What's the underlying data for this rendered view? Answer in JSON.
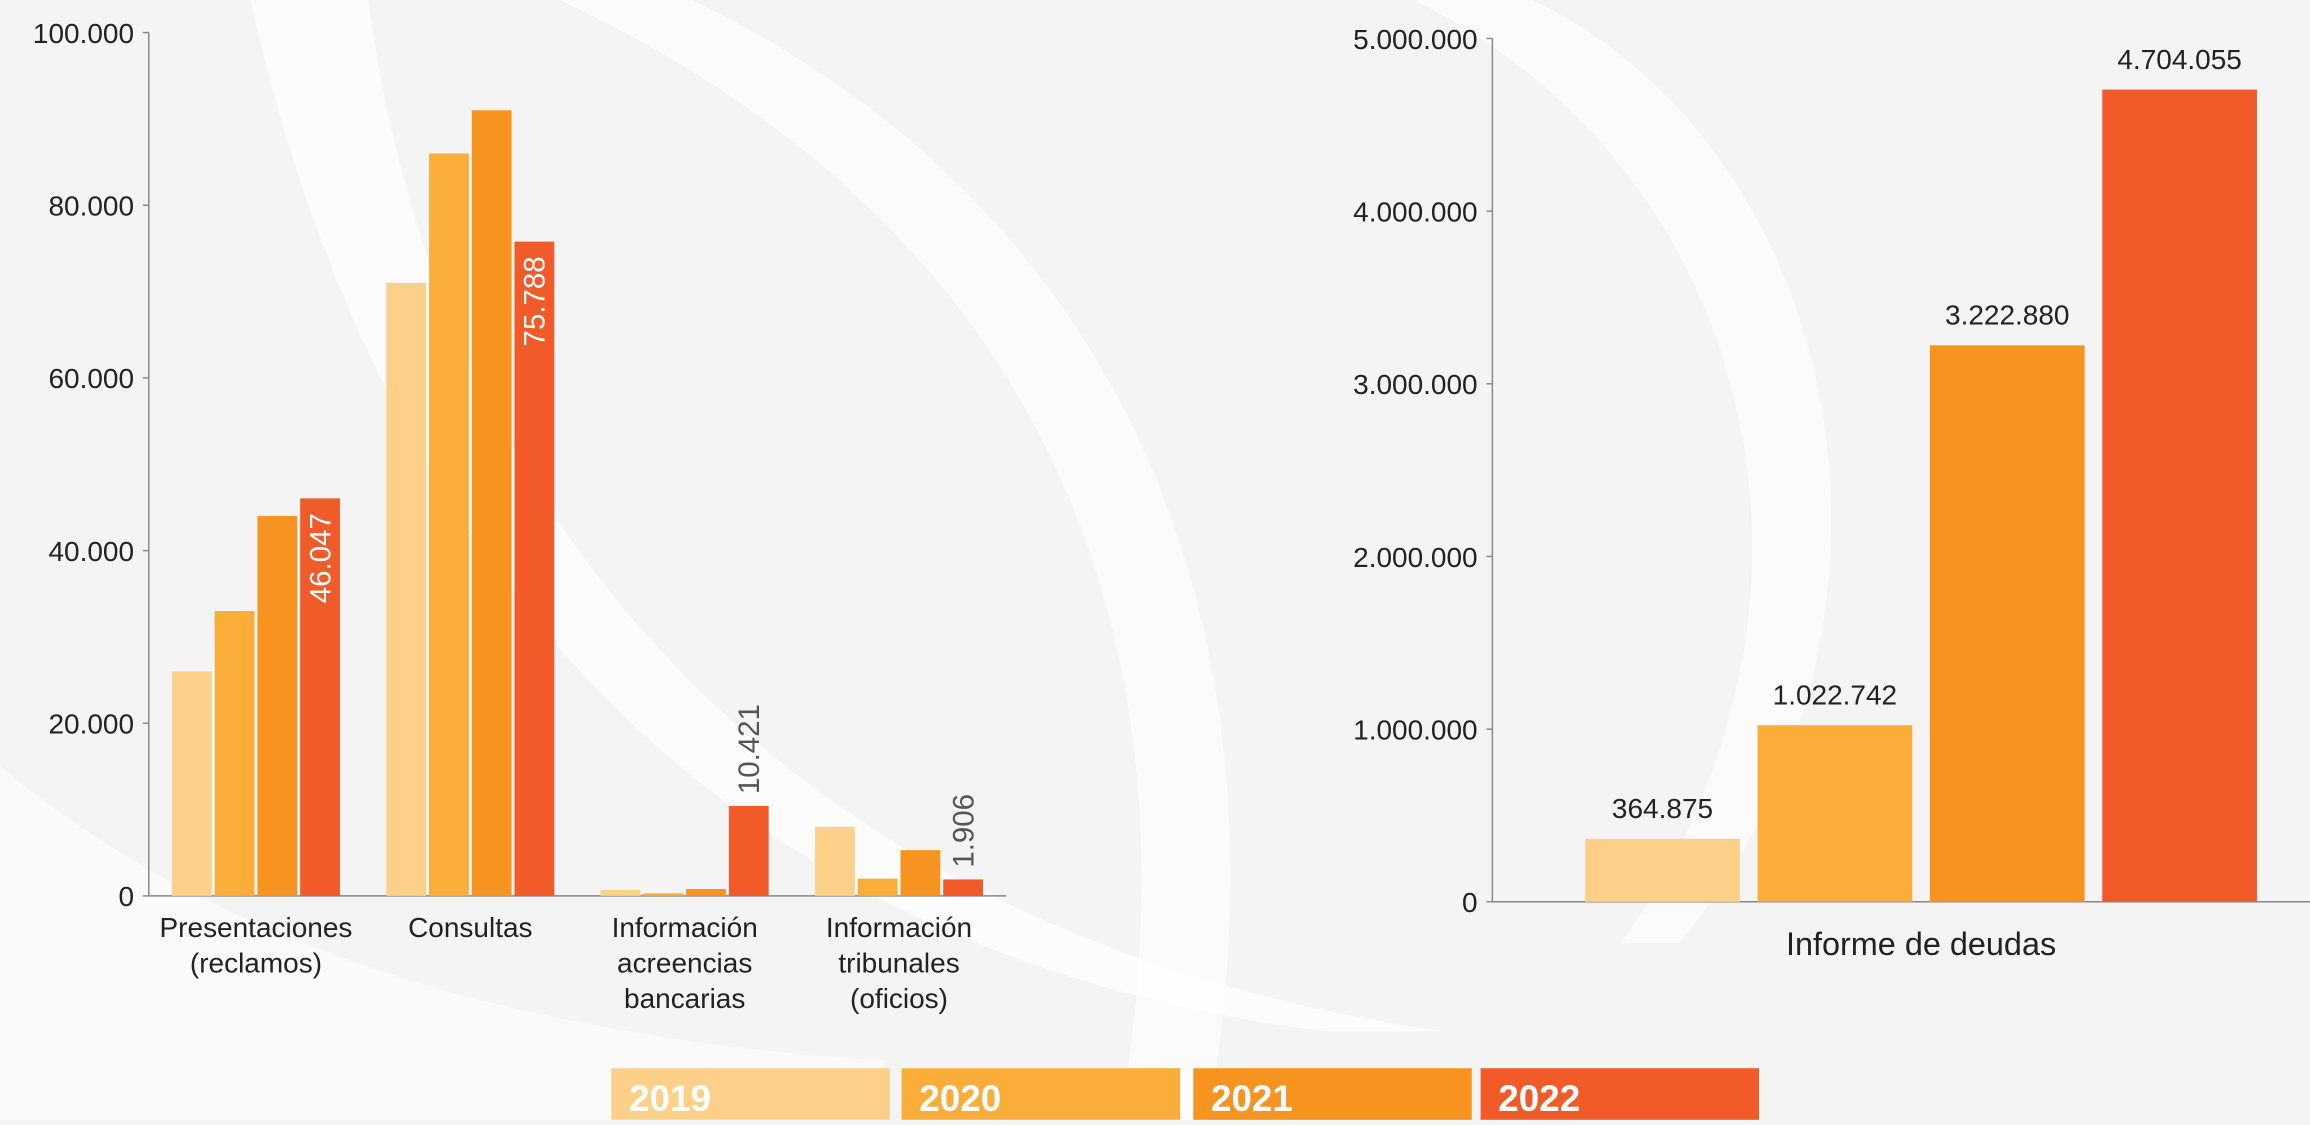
{
  "chart_data": [
    {
      "type": "bar",
      "categories": [
        [
          "Presentaciones",
          "(reclamos)"
        ],
        [
          "Consultas"
        ],
        [
          "Información",
          "acreencias",
          "bancarias"
        ],
        [
          "Información",
          "tribunales",
          "(oficios)"
        ]
      ],
      "series": [
        {
          "name": "2019",
          "color": "#fdd08a",
          "values": [
            26000,
            71000,
            700,
            8000
          ]
        },
        {
          "name": "2020",
          "color": "#fbad3a",
          "values": [
            33000,
            86000,
            300,
            2000
          ]
        },
        {
          "name": "2021",
          "color": "#f7941f",
          "values": [
            44000,
            91000,
            800,
            5300
          ]
        },
        {
          "name": "2022",
          "color": "#f15a29",
          "values": [
            46047,
            75788,
            10421,
            1906
          ],
          "value_labels": [
            "46.047",
            "75.788",
            "10.421",
            "1.906"
          ]
        }
      ],
      "ylim": [
        0,
        100000
      ],
      "yticks": [
        0,
        {
          "value": 20000,
          "label": "20.000"
        },
        {
          "value": 40000,
          "label": "40.000"
        },
        {
          "value": 60000,
          "label": "60.000"
        },
        {
          "value": 80000,
          "label": "80.000"
        },
        {
          "value": 100000,
          "label": "100.000"
        }
      ]
    },
    {
      "type": "bar",
      "categories": [
        "Informe de deudas"
      ],
      "series": [
        {
          "color": "#fdd08a",
          "values": [
            364875
          ],
          "value_labels": [
            "364.875"
          ]
        },
        {
          "color": "#fbad3a",
          "values": [
            1022742
          ],
          "value_labels": [
            "1.022.742"
          ]
        },
        {
          "color": "#f7941f",
          "values": [
            3222880
          ],
          "value_labels": [
            "3.222.880"
          ]
        },
        {
          "color": "#f15a29",
          "values": [
            4704055
          ],
          "value_labels": [
            "4.704.055"
          ]
        }
      ],
      "ylim": [
        0,
        5000000
      ],
      "yticks": [
        0,
        {
          "value": 1000000,
          "label": "1.000.000"
        },
        {
          "value": 2000000,
          "label": "2.000.000"
        },
        {
          "value": 3000000,
          "label": "3.000.000"
        },
        {
          "value": 4000000,
          "label": "4.000.000"
        },
        {
          "value": 5000000,
          "label": "5.000.000"
        }
      ]
    }
  ]
}
